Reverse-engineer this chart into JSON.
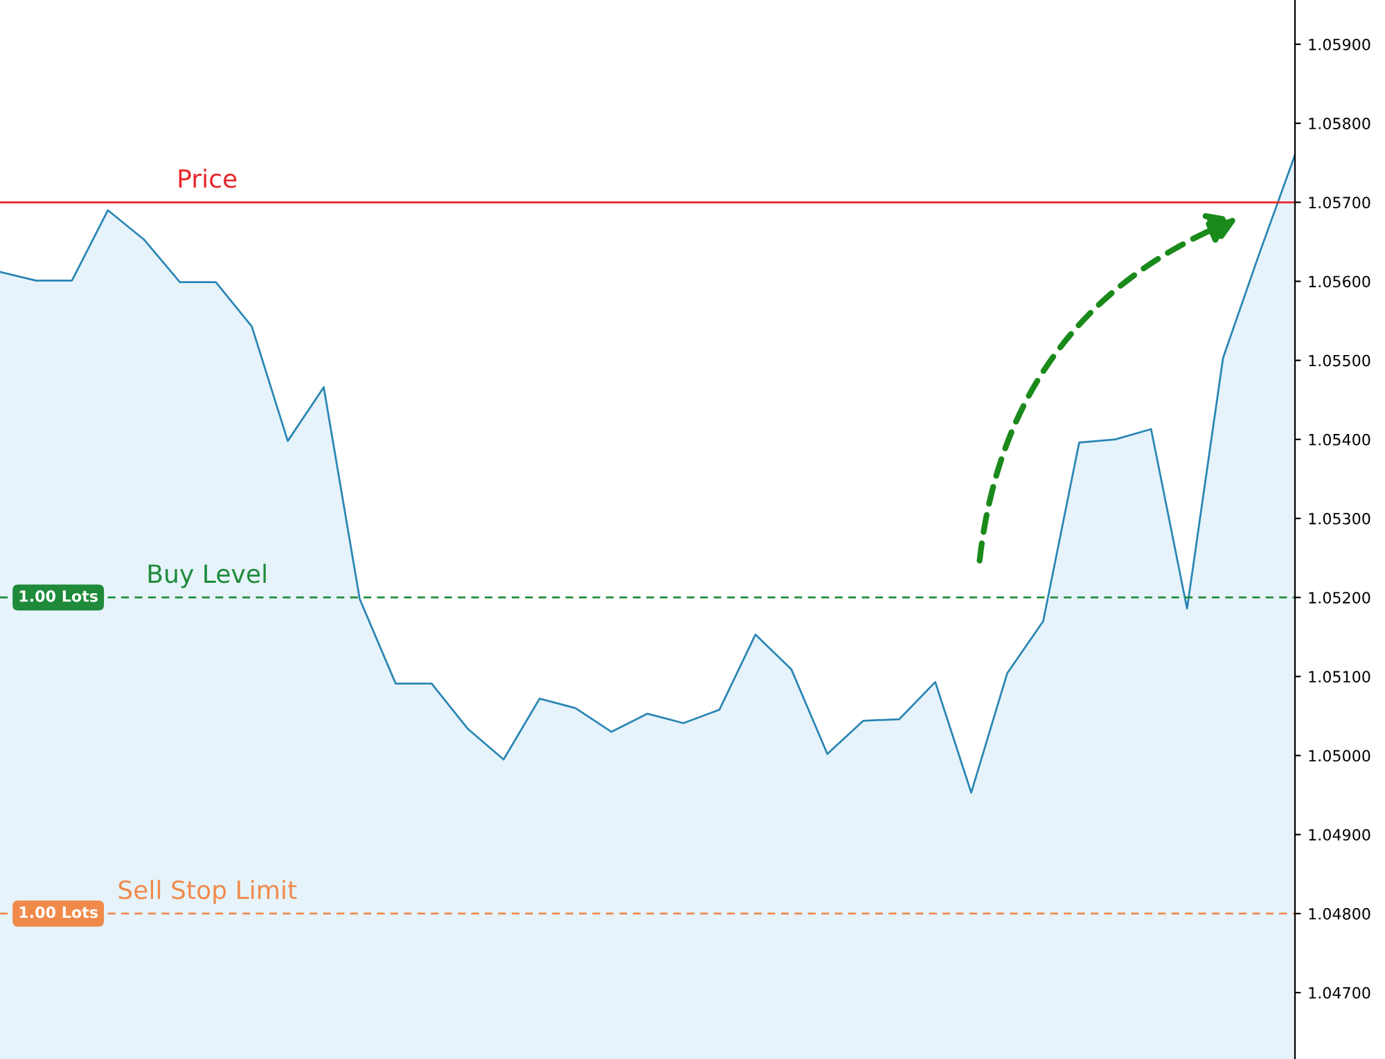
{
  "chart_data": {
    "type": "area",
    "categories": [
      null,
      null,
      null,
      null,
      null,
      null,
      null,
      null,
      null,
      null,
      null,
      null,
      null,
      null,
      null,
      null,
      null,
      null,
      null,
      null,
      null,
      null,
      null,
      null,
      null,
      null,
      null,
      null,
      null,
      null,
      null,
      null,
      null,
      null,
      null,
      null,
      null
    ],
    "series": [
      {
        "color": "#2a86b4",
        "values": [
          1.05612,
          1.05601,
          1.05601,
          1.0569,
          1.05653,
          1.05599,
          1.05599,
          1.05543,
          1.05398,
          1.05466,
          1.05198,
          1.05091,
          1.05091,
          1.05034,
          1.04995,
          1.05072,
          1.0506,
          1.0503,
          1.05053,
          1.05041,
          1.05058,
          1.05153,
          1.05109,
          1.05002,
          1.05044,
          1.05046,
          1.05093,
          1.04953,
          1.05104,
          1.0517,
          1.05396,
          1.054,
          1.05413,
          1.05186,
          1.05503,
          1.05634,
          1.0576
        ]
      }
    ],
    "ylim": [
      1.04616,
      1.05956
    ],
    "yticks": [
      {
        "value": 1.047,
        "label": "1.04700"
      },
      {
        "value": 1.048,
        "label": "1.04800"
      },
      {
        "value": 1.049,
        "label": "1.04900"
      },
      {
        "value": 1.05,
        "label": "1.05000"
      },
      {
        "value": 1.051,
        "label": "1.05100"
      },
      {
        "value": 1.052,
        "label": "1.05200"
      },
      {
        "value": 1.053,
        "label": "1.05300"
      },
      {
        "value": 1.054,
        "label": "1.05400"
      },
      {
        "value": 1.055,
        "label": "1.05500"
      },
      {
        "value": 1.056,
        "label": "1.05600"
      },
      {
        "value": 1.057,
        "label": "1.05700"
      },
      {
        "value": 1.058,
        "label": "1.05800"
      },
      {
        "value": 1.059,
        "label": "1.05900"
      }
    ],
    "tick_labels": "y",
    "grid": false,
    "ref_lines": [
      {
        "axis": "y",
        "value": 1.057,
        "label": "Price",
        "color": "#e8262a",
        "line_style": "solid"
      },
      {
        "axis": "y",
        "value": 1.052,
        "label": "Buy Level",
        "color": "#1e8a3a",
        "line_style": "dashed"
      },
      {
        "axis": "y",
        "value": 1.048,
        "label": "Sell Stop Limit",
        "color": "#f08a4b",
        "line_style": "dashed"
      }
    ],
    "annotations": [
      {
        "text": "1.00 Lots",
        "y": 1.052
      },
      {
        "text": "1.00 Lots",
        "y": 1.048
      }
    ]
  }
}
